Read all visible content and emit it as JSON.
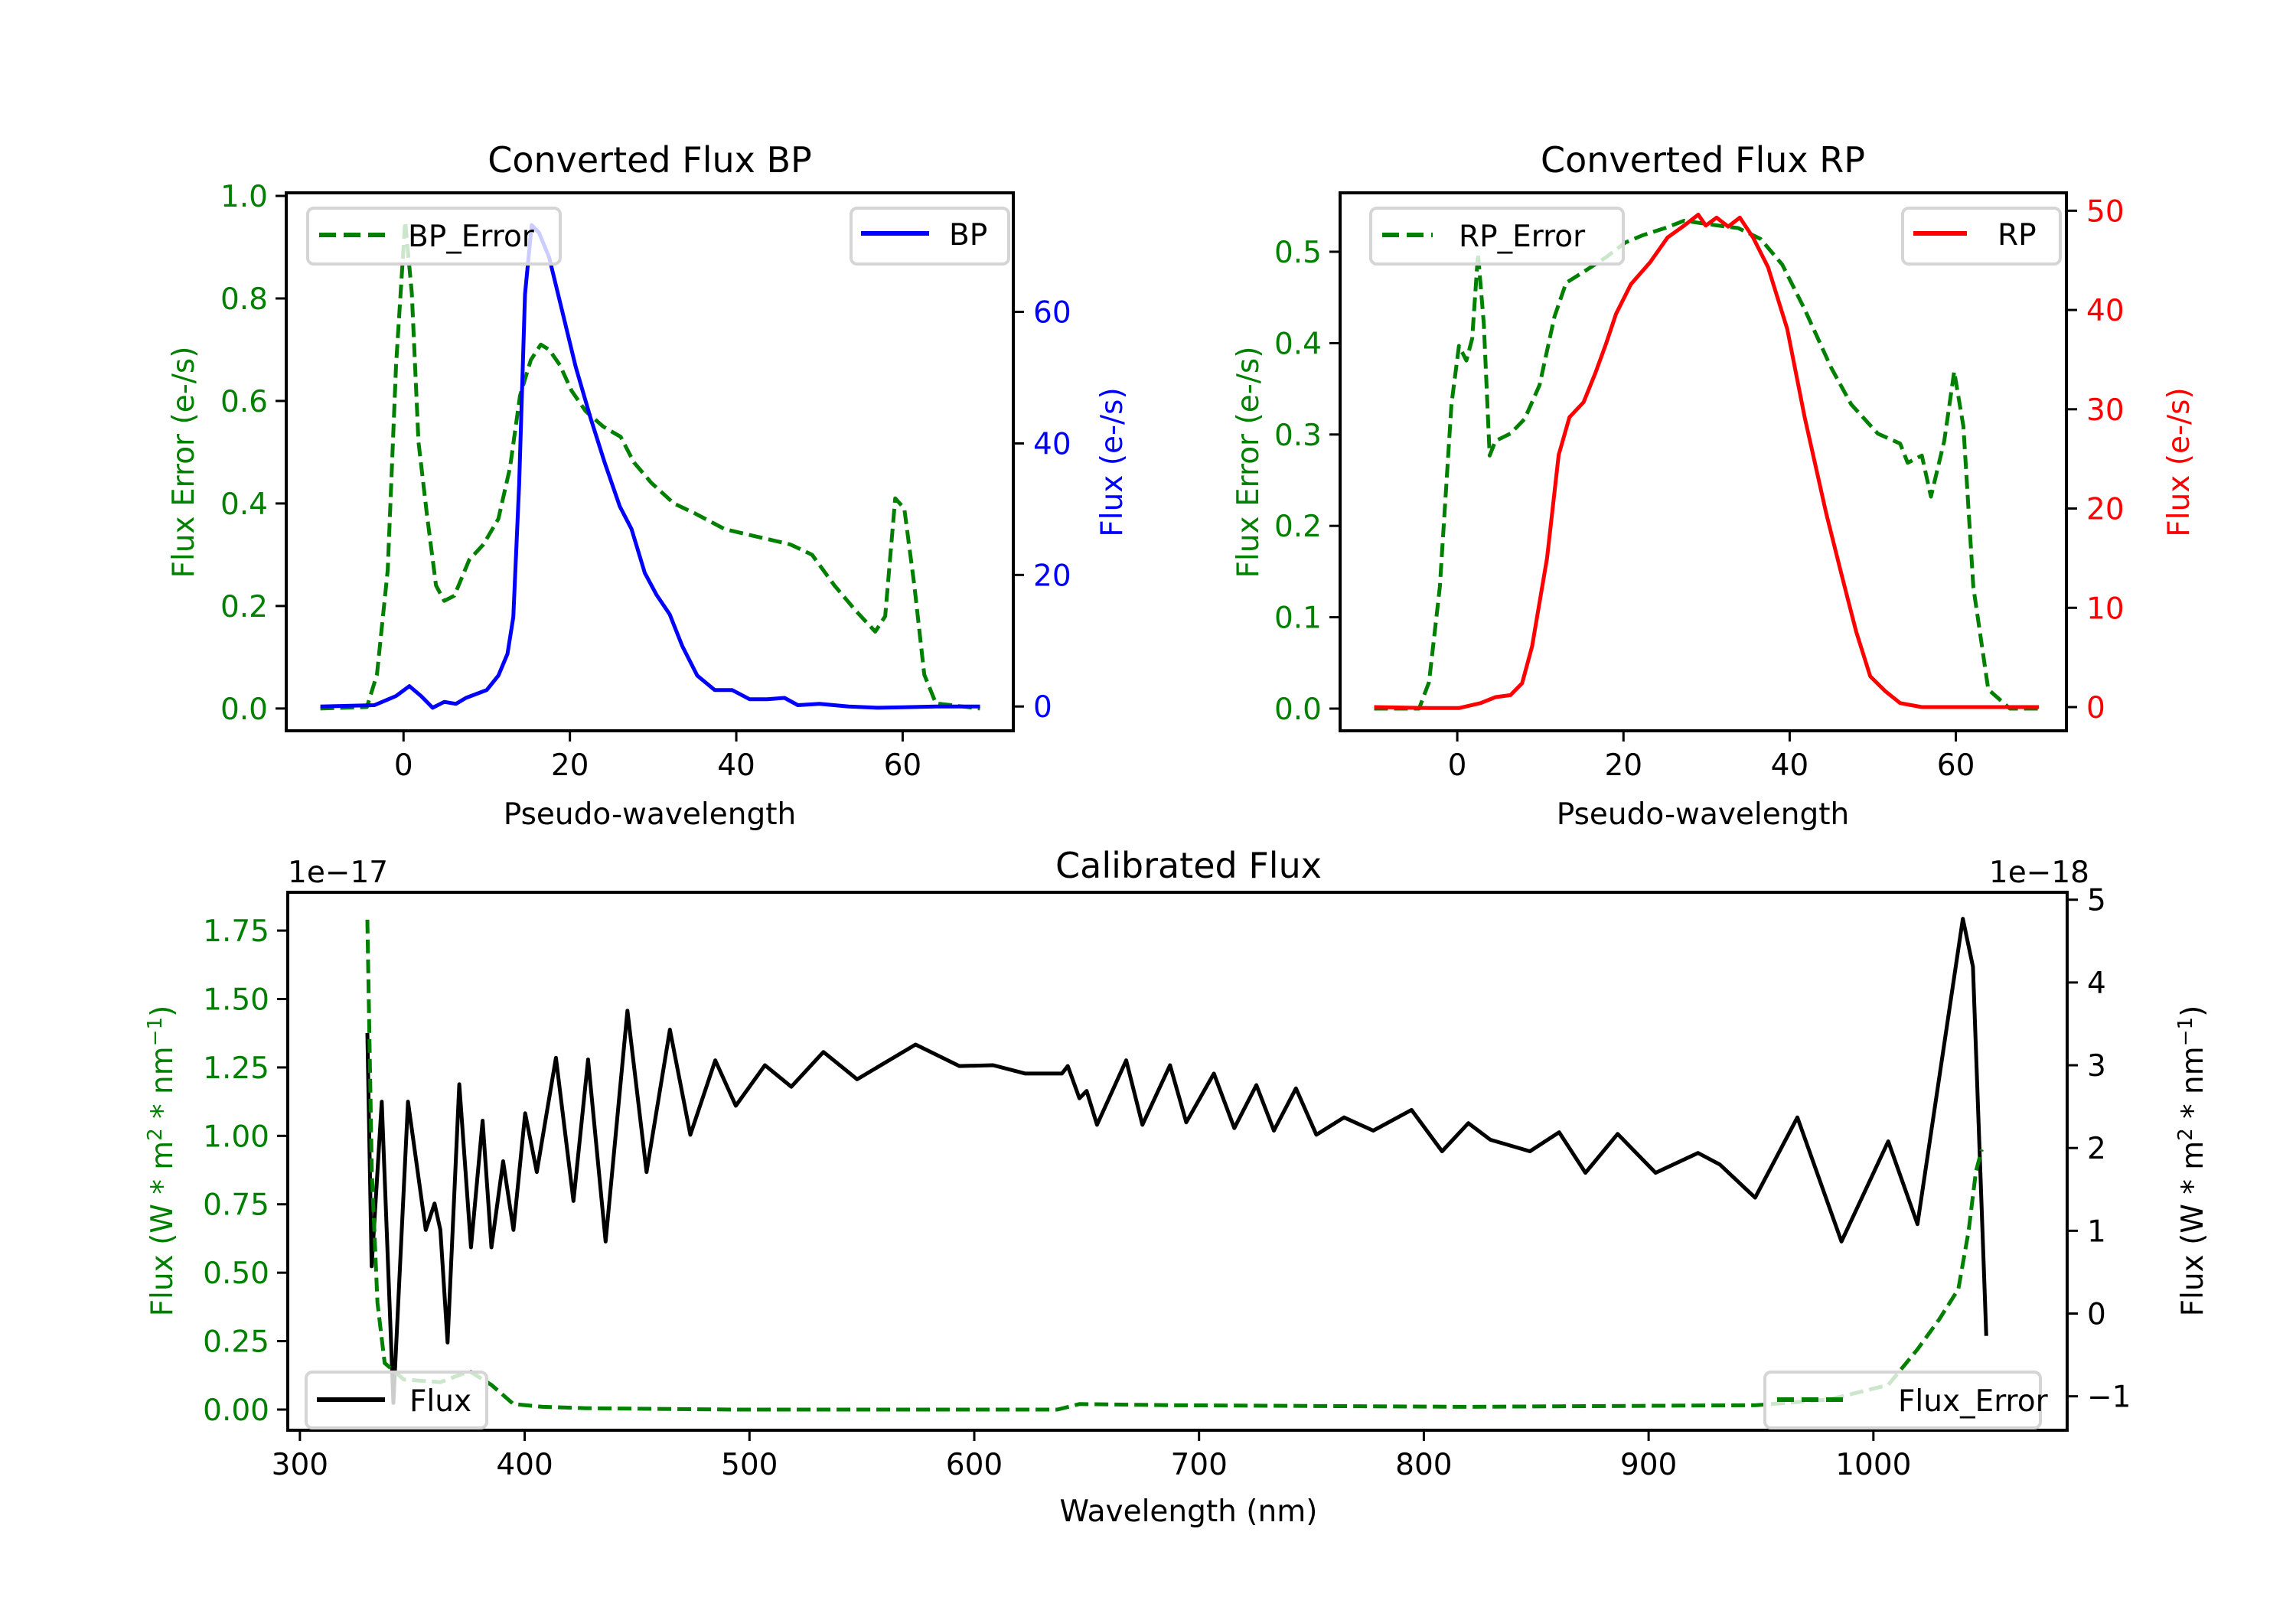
{
  "figure": {
    "background": "#ffffff"
  },
  "colors": {
    "green": "#008000",
    "blue": "#0000ff",
    "red": "#ff0000",
    "black": "#000000",
    "legend_border": "#d5d5d5"
  },
  "chart_data": [
    {
      "id": "bp",
      "type": "line",
      "title": "Converted Flux BP",
      "xlabel": "Pseudo-wavelength",
      "ylabel_left": "Flux Error (e-/s)",
      "ylabel_right": "Flux (e-/s)",
      "xlim": [
        -14.1,
        73.3
      ],
      "ylim_left": [
        -0.0435,
        1.006
      ],
      "ylim_right": [
        -3.7,
        78.1
      ],
      "xticks": [
        0,
        20,
        40,
        60
      ],
      "xtick_labels": [
        "0",
        "20",
        "40",
        "60"
      ],
      "yticks_left": [
        0.0,
        0.2,
        0.4,
        0.6,
        0.8,
        1.0
      ],
      "ytick_labels_left": [
        "0.0",
        "0.2",
        "0.4",
        "0.6",
        "0.8",
        "1.0"
      ],
      "yticks_right": [
        0,
        20,
        40,
        60
      ],
      "ytick_labels_right": [
        "0",
        "20",
        "40",
        "60"
      ],
      "left_axis_color": "#008000",
      "right_axis_color": "#0000ff",
      "grid": false,
      "legends": [
        {
          "placement": "upper-left",
          "label": "BP_Error",
          "color": "#008000",
          "style": "dashed"
        },
        {
          "placement": "upper-right",
          "label": "BP",
          "color": "#0000ff",
          "style": "solid"
        }
      ],
      "series": [
        {
          "name": "BP_Error",
          "axis": "left",
          "color": "#008000",
          "style": "dashed",
          "x": [
            -10,
            -4.4,
            -3.2,
            -1.9,
            -0.9,
            0.2,
            1.0,
            1.8,
            2.8,
            3.9,
            4.9,
            6.1,
            7.9,
            9.6,
            11.4,
            12.8,
            14.0,
            15.3,
            16.5,
            17.5,
            18.8,
            20.2,
            21.9,
            24.0,
            26.1,
            27.7,
            29.8,
            32.5,
            35.1,
            38.6,
            41.2,
            43.9,
            46.5,
            49.1,
            51.8,
            54.4,
            56.7,
            57.9,
            59.1,
            60.2,
            61.4,
            62.6,
            64.0,
            69.3
          ],
          "y": [
            0,
            0.003,
            0.066,
            0.27,
            0.67,
            0.95,
            0.81,
            0.52,
            0.38,
            0.24,
            0.21,
            0.22,
            0.29,
            0.32,
            0.37,
            0.47,
            0.61,
            0.68,
            0.71,
            0.7,
            0.67,
            0.62,
            0.58,
            0.55,
            0.53,
            0.48,
            0.44,
            0.4,
            0.38,
            0.35,
            0.34,
            0.33,
            0.32,
            0.3,
            0.24,
            0.19,
            0.15,
            0.18,
            0.41,
            0.39,
            0.24,
            0.066,
            0.01,
            0
          ]
        },
        {
          "name": "BP",
          "axis": "right",
          "color": "#0000ff",
          "style": "solid",
          "x": [
            -10,
            -3.5,
            -0.9,
            0.7,
            2.1,
            3.5,
            4.9,
            6.3,
            7.5,
            10.0,
            11.4,
            12.5,
            13.2,
            13.9,
            14.6,
            15.4,
            16.3,
            17.5,
            19.0,
            20.7,
            22.5,
            24.2,
            26.0,
            27.4,
            29.0,
            30.4,
            32.0,
            33.5,
            35.3,
            37.4,
            39.5,
            41.6,
            43.7,
            45.8,
            47.4,
            50.0,
            53.5,
            57.0,
            60.5,
            64.0,
            69.3
          ],
          "y": [
            0,
            0.2,
            1.6,
            3.1,
            1.6,
            -0.2,
            0.7,
            0.4,
            1.3,
            2.5,
            4.7,
            8.0,
            13.6,
            33.7,
            62.7,
            73.2,
            72.0,
            68.3,
            60.5,
            51.6,
            43.8,
            37.0,
            30.4,
            27.0,
            20.3,
            17.0,
            14.0,
            9.2,
            4.7,
            2.5,
            2.5,
            1.1,
            1.1,
            1.3,
            0.2,
            0.4,
            0,
            -0.2,
            -0.1,
            0,
            0
          ]
        }
      ]
    },
    {
      "id": "rp",
      "type": "line",
      "title": "Converted Flux RP",
      "xlabel": "Pseudo-wavelength",
      "ylabel_left": "Flux Error (e-/s)",
      "ylabel_right": "Flux (e-/s)",
      "xlim": [
        -14.1,
        73.3
      ],
      "ylim_left": [
        -0.0243,
        0.5645
      ],
      "ylim_right": [
        -2.39,
        51.8
      ],
      "xticks": [
        0,
        20,
        40,
        60
      ],
      "xtick_labels": [
        "0",
        "20",
        "40",
        "60"
      ],
      "yticks_left": [
        0.0,
        0.1,
        0.2,
        0.3,
        0.4,
        0.5
      ],
      "ytick_labels_left": [
        "0.0",
        "0.1",
        "0.2",
        "0.3",
        "0.4",
        "0.5"
      ],
      "yticks_right": [
        0,
        10,
        20,
        30,
        40,
        50
      ],
      "ytick_labels_right": [
        "0",
        "10",
        "20",
        "30",
        "40",
        "50"
      ],
      "left_axis_color": "#008000",
      "right_axis_color": "#ff0000",
      "grid": false,
      "legends": [
        {
          "placement": "upper-left",
          "label": "RP_Error",
          "color": "#008000",
          "style": "dashed"
        },
        {
          "placement": "upper-right",
          "label": "RP",
          "color": "#ff0000",
          "style": "solid"
        }
      ],
      "series": [
        {
          "name": "RP_Error",
          "axis": "left",
          "color": "#008000",
          "style": "dashed",
          "x": [
            -10,
            -4.6,
            -3.4,
            -2.1,
            -0.7,
            0.2,
            1.1,
            1.8,
            2.5,
            3.2,
            3.9,
            4.6,
            6.4,
            8.1,
            9.9,
            11.7,
            13.1,
            15.2,
            17.9,
            20.2,
            22.3,
            25.0,
            27.3,
            30.3,
            33.8,
            36.5,
            39.1,
            41.8,
            45.0,
            47.4,
            50.6,
            53.3,
            54.2,
            55.9,
            57.0,
            58.6,
            59.8,
            60.9,
            62.1,
            63.9,
            66.5,
            70.0
          ],
          "y": [
            0,
            0,
            0.029,
            0.133,
            0.333,
            0.397,
            0.381,
            0.405,
            0.498,
            0.421,
            0.277,
            0.293,
            0.301,
            0.317,
            0.354,
            0.429,
            0.466,
            0.478,
            0.494,
            0.51,
            0.518,
            0.526,
            0.534,
            0.53,
            0.526,
            0.514,
            0.486,
            0.437,
            0.373,
            0.333,
            0.301,
            0.29,
            0.269,
            0.277,
            0.232,
            0.293,
            0.369,
            0.309,
            0.133,
            0.021,
            0,
            0
          ]
        },
        {
          "name": "RP",
          "axis": "right",
          "color": "#ff0000",
          "style": "solid",
          "x": [
            -10,
            -3.4,
            0.2,
            2.8,
            4.6,
            6.4,
            7.8,
            9.0,
            10.8,
            12.2,
            13.5,
            15.2,
            16.6,
            17.9,
            19.1,
            20.9,
            23.2,
            25.3,
            27.3,
            29.0,
            29.9,
            31.2,
            32.6,
            34.0,
            35.6,
            37.4,
            39.7,
            41.8,
            44.4,
            46.2,
            48.0,
            49.7,
            51.5,
            53.3,
            55.9,
            63.0,
            70.0
          ],
          "y": [
            0,
            -0.1,
            -0.1,
            0.4,
            1.0,
            1.2,
            2.4,
            6.1,
            15.0,
            25.4,
            29.2,
            30.7,
            33.6,
            36.6,
            39.6,
            42.6,
            44.8,
            47.3,
            48.5,
            49.6,
            48.5,
            49.3,
            48.4,
            49.3,
            47.3,
            44.3,
            38.1,
            29.2,
            19.5,
            13.5,
            7.6,
            3.1,
            1.6,
            0.4,
            0,
            0,
            0
          ]
        }
      ]
    },
    {
      "id": "calibrated",
      "type": "line",
      "title": "Calibrated Flux",
      "xlabel": "Wavelength (nm)",
      "ylabel_left": "Flux (W * m^2 * nm^-1)",
      "ylabel_right": "Flux (W * m^2 * nm^-1)",
      "offset_left": "1e−17",
      "offset_right": "1e−18",
      "xlim": [
        294.6,
        1086.2
      ],
      "ylim_left": [
        -0.0755,
        1.89
      ],
      "ylim_right": [
        -1.41,
        5.09
      ],
      "xticks": [
        300,
        400,
        500,
        600,
        700,
        800,
        900,
        1000
      ],
      "xtick_labels": [
        "300",
        "400",
        "500",
        "600",
        "700",
        "800",
        "900",
        "1000"
      ],
      "yticks_left": [
        0.0,
        0.25,
        0.5,
        0.75,
        1.0,
        1.25,
        1.5,
        1.75
      ],
      "ytick_labels_left": [
        "0.00",
        "0.25",
        "0.50",
        "0.75",
        "1.00",
        "1.25",
        "1.50",
        "1.75"
      ],
      "yticks_right": [
        -1,
        0,
        1,
        2,
        3,
        4,
        5
      ],
      "ytick_labels_right": [
        "−1",
        "0",
        "1",
        "2",
        "3",
        "4",
        "5"
      ],
      "left_axis_color": "#008000",
      "right_axis_color": "#000000",
      "grid": false,
      "legends": [
        {
          "placement": "lower-left",
          "label": "Flux",
          "color": "#000000",
          "style": "solid"
        },
        {
          "placement": "lower-right",
          "label": "Flux_Error",
          "color": "#008000",
          "style": "dashed"
        }
      ],
      "series": [
        {
          "name": "Flux",
          "axis": "right",
          "unit_scale": "1e-18",
          "color": "#000000",
          "style": "solid",
          "x": [
            330.0,
            331.9,
            336.4,
            341.6,
            348.1,
            356.0,
            359.9,
            362.5,
            365.7,
            370.9,
            376.1,
            381.3,
            385.2,
            390.4,
            395.0,
            400.2,
            405.4,
            413.9,
            421.7,
            428.2,
            436.0,
            445.7,
            454.2,
            464.6,
            473.7,
            484.8,
            493.9,
            506.9,
            518.6,
            532.9,
            547.9,
            573.9,
            593.4,
            608.4,
            622.7,
            639.0,
            641.6,
            646.8,
            650.0,
            654.6,
            667.6,
            674.8,
            687.1,
            694.3,
            706.6,
            715.7,
            725.5,
            733.3,
            743.1,
            752.2,
            764.5,
            777.5,
            794.5,
            808.1,
            819.8,
            829.6,
            847.2,
            860.2,
            871.9,
            886.2,
            903.1,
            922.0,
            931.7,
            947.4,
            966.2,
            985.8,
            1006.6,
            1019.6,
            1039.8,
            1044.3,
            1050.2
          ],
          "y": [
            3.39,
            0.57,
            2.56,
            -1.08,
            2.56,
            1.01,
            1.33,
            1.01,
            -0.35,
            2.77,
            0.8,
            2.33,
            0.8,
            1.84,
            1.01,
            2.42,
            1.71,
            3.09,
            1.36,
            3.07,
            0.87,
            3.66,
            1.71,
            3.43,
            2.16,
            3.06,
            2.51,
            3.0,
            2.74,
            3.16,
            2.83,
            3.25,
            2.99,
            3.0,
            2.9,
            2.9,
            2.99,
            2.6,
            2.69,
            2.28,
            3.06,
            2.28,
            3.0,
            2.31,
            2.9,
            2.24,
            2.76,
            2.21,
            2.72,
            2.16,
            2.37,
            2.21,
            2.46,
            1.96,
            2.3,
            2.1,
            1.96,
            2.19,
            1.7,
            2.17,
            1.7,
            1.94,
            1.8,
            1.4,
            2.37,
            0.87,
            2.08,
            1.08,
            4.77,
            4.19,
            -0.27
          ]
        },
        {
          "name": "Flux_Error",
          "axis": "left",
          "unit_scale": "1e-17",
          "color": "#008000",
          "style": "dashed",
          "x": [
            330.0,
            332.0,
            334.5,
            337.7,
            346.2,
            362.5,
            375.5,
            385.2,
            395.0,
            408.0,
            427.5,
            492.6,
            583.7,
            637.0,
            646.8,
            687.8,
            818.0,
            948.0,
            980.5,
            1006.6,
            1019.6,
            1029.3,
            1037.8,
            1042.3,
            1045.6,
            1048.2
          ],
          "y": [
            1.79,
            0.87,
            0.39,
            0.17,
            0.11,
            0.1,
            0.14,
            0.09,
            0.02,
            0.01,
            0.005,
            0.0,
            0.0,
            0.0,
            0.02,
            0.016,
            0.01,
            0.016,
            0.037,
            0.09,
            0.22,
            0.33,
            0.44,
            0.65,
            0.87,
            0.95
          ]
        }
      ]
    }
  ]
}
